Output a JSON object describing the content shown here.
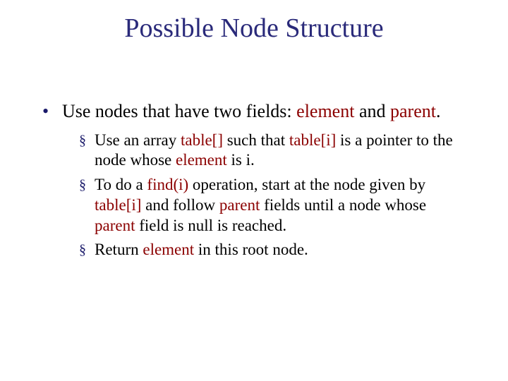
{
  "colors": {
    "title": "#2a2a7a",
    "bullet": "#1a1a6a",
    "keyword": "#8b0000",
    "text": "#000000",
    "background": "#ffffff"
  },
  "typography": {
    "title_fontsize": 38,
    "body_fontsize": 26,
    "sub_fontsize": 23,
    "font_family": "Times New Roman"
  },
  "title": "Possible Node Structure",
  "bullet1": {
    "pre": "Use nodes that have two fields: ",
    "kw1": "element",
    "mid": " and ",
    "kw2": "parent",
    "post": "."
  },
  "sub1": {
    "pre": "Use an array ",
    "kw1": "table[]",
    "mid": " such that ",
    "kw2": "table[i]",
    "post1": " is a pointer to the node whose ",
    "kw3": "element",
    "post2": " is i."
  },
  "sub2": {
    "pre": "To do a ",
    "kw1": "find(i)",
    "mid1": " operation, start at the node given by ",
    "kw2": "table[i]",
    "mid2": " and follow ",
    "kw3": "parent",
    "mid3": " fields until a node whose ",
    "kw4": "parent",
    "post": " field is null is reached."
  },
  "sub3": {
    "pre": "Return ",
    "kw1": "element",
    "post": " in this root node."
  }
}
